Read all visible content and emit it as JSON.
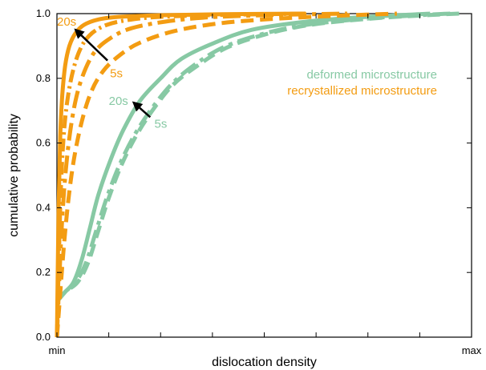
{
  "chart_data": {
    "type": "line",
    "xlabel": "dislocation density",
    "ylabel": "cumulative probability",
    "xlim": [
      0,
      1
    ],
    "ylim": [
      0,
      1
    ],
    "x_tick_labels": [
      {
        "x": 0,
        "label": "min"
      },
      {
        "x": 1,
        "label": "max"
      }
    ],
    "x_minor_ticks": [
      0,
      0.125,
      0.25,
      0.375,
      0.5,
      0.625,
      0.75,
      0.875,
      1
    ],
    "y_ticks": [
      0.0,
      0.2,
      0.4,
      0.6,
      0.8,
      1.0
    ],
    "y_tick_labels": [
      "0.0",
      "0.2",
      "0.4",
      "0.6",
      "0.8",
      "1.0"
    ],
    "grid": false,
    "legend": {
      "placement": "top-right",
      "entries": [
        {
          "label": "deformed microstructure",
          "color": "#87c9a4"
        },
        {
          "label": "recrystallized microstructure",
          "color": "#f39c12"
        }
      ]
    },
    "colors": {
      "deformed": "#87c9a4",
      "recrystallized": "#f39c12",
      "arrow": "#000000"
    },
    "series": [
      {
        "group": "recrystallized",
        "dash": "solid",
        "points": [
          [
            0,
            0
          ],
          [
            0.004,
            0.4
          ],
          [
            0.008,
            0.62
          ],
          [
            0.013,
            0.75
          ],
          [
            0.02,
            0.84
          ],
          [
            0.03,
            0.9
          ],
          [
            0.045,
            0.94
          ],
          [
            0.065,
            0.965
          ],
          [
            0.1,
            0.982
          ],
          [
            0.15,
            0.99
          ],
          [
            0.25,
            0.995
          ],
          [
            0.4,
            0.998
          ],
          [
            0.6,
            1.0
          ]
        ]
      },
      {
        "group": "recrystallized",
        "dash": "dashdot-fine",
        "points": [
          [
            0,
            0
          ],
          [
            0.008,
            0.4
          ],
          [
            0.015,
            0.6
          ],
          [
            0.025,
            0.73
          ],
          [
            0.04,
            0.83
          ],
          [
            0.06,
            0.9
          ],
          [
            0.085,
            0.94
          ],
          [
            0.12,
            0.965
          ],
          [
            0.17,
            0.98
          ],
          [
            0.25,
            0.99
          ],
          [
            0.4,
            0.996
          ],
          [
            0.6,
            1.0
          ]
        ]
      },
      {
        "group": "recrystallized",
        "dash": "dashdot",
        "points": [
          [
            0,
            0
          ],
          [
            0.012,
            0.35
          ],
          [
            0.024,
            0.55
          ],
          [
            0.04,
            0.7
          ],
          [
            0.06,
            0.8
          ],
          [
            0.09,
            0.88
          ],
          [
            0.13,
            0.925
          ],
          [
            0.18,
            0.955
          ],
          [
            0.26,
            0.975
          ],
          [
            0.36,
            0.988
          ],
          [
            0.5,
            0.995
          ],
          [
            0.7,
            1.0
          ]
        ]
      },
      {
        "group": "recrystallized",
        "dash": "dashed",
        "points": [
          [
            0,
            0
          ],
          [
            0.018,
            0.3
          ],
          [
            0.035,
            0.5
          ],
          [
            0.055,
            0.64
          ],
          [
            0.08,
            0.75
          ],
          [
            0.11,
            0.82
          ],
          [
            0.15,
            0.87
          ],
          [
            0.2,
            0.91
          ],
          [
            0.28,
            0.945
          ],
          [
            0.38,
            0.968
          ],
          [
            0.5,
            0.982
          ],
          [
            0.65,
            0.992
          ],
          [
            0.82,
            1.0
          ]
        ]
      },
      {
        "group": "deformed",
        "dash": "solid",
        "points": [
          [
            0,
            0.11
          ],
          [
            0.02,
            0.14
          ],
          [
            0.04,
            0.17
          ],
          [
            0.06,
            0.24
          ],
          [
            0.08,
            0.34
          ],
          [
            0.1,
            0.44
          ],
          [
            0.13,
            0.55
          ],
          [
            0.16,
            0.64
          ],
          [
            0.2,
            0.73
          ],
          [
            0.25,
            0.8
          ],
          [
            0.3,
            0.86
          ],
          [
            0.38,
            0.91
          ],
          [
            0.47,
            0.95
          ],
          [
            0.6,
            0.975
          ],
          [
            0.75,
            0.99
          ],
          [
            0.9,
            1.0
          ]
        ]
      },
      {
        "group": "deformed",
        "dash": "dashdot",
        "points": [
          [
            0,
            0.11
          ],
          [
            0.02,
            0.14
          ],
          [
            0.045,
            0.17
          ],
          [
            0.07,
            0.23
          ],
          [
            0.095,
            0.33
          ],
          [
            0.12,
            0.43
          ],
          [
            0.15,
            0.53
          ],
          [
            0.185,
            0.62
          ],
          [
            0.225,
            0.7
          ],
          [
            0.275,
            0.78
          ],
          [
            0.33,
            0.84
          ],
          [
            0.4,
            0.895
          ],
          [
            0.49,
            0.935
          ],
          [
            0.6,
            0.965
          ],
          [
            0.75,
            0.985
          ],
          [
            0.9,
            0.997
          ],
          [
            0.95,
            1.0
          ]
        ]
      },
      {
        "group": "deformed",
        "dash": "dashed",
        "points": [
          [
            0,
            0.11
          ],
          [
            0.02,
            0.14
          ],
          [
            0.05,
            0.17
          ],
          [
            0.075,
            0.23
          ],
          [
            0.1,
            0.33
          ],
          [
            0.125,
            0.43
          ],
          [
            0.155,
            0.53
          ],
          [
            0.19,
            0.62
          ],
          [
            0.23,
            0.7
          ],
          [
            0.28,
            0.78
          ],
          [
            0.34,
            0.84
          ],
          [
            0.41,
            0.895
          ],
          [
            0.5,
            0.935
          ],
          [
            0.61,
            0.965
          ],
          [
            0.76,
            0.985
          ],
          [
            0.92,
            0.997
          ],
          [
            0.97,
            1.0
          ]
        ]
      }
    ],
    "annotations": [
      {
        "text": "20s",
        "group": "recrystallized",
        "x": 0.0,
        "y": 0.975
      },
      {
        "text": "5s",
        "group": "recrystallized",
        "x": 0.128,
        "y": 0.815
      },
      {
        "text": "20s",
        "group": "deformed",
        "x": 0.125,
        "y": 0.73
      },
      {
        "text": "5s",
        "group": "deformed",
        "x": 0.235,
        "y": 0.66
      }
    ],
    "arrows": [
      {
        "from": [
          0.122,
          0.855
        ],
        "to": [
          0.045,
          0.95
        ]
      },
      {
        "from": [
          0.225,
          0.68
        ],
        "to": [
          0.185,
          0.725
        ]
      }
    ]
  }
}
